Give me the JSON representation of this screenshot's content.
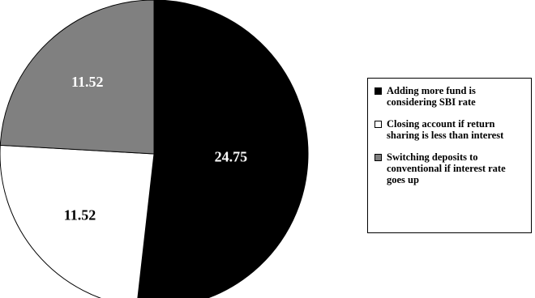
{
  "chart_data": {
    "type": "pie",
    "title": "",
    "start_angle_deg": 0,
    "direction": "clockwise",
    "slices": [
      {
        "label": "Adding more fund is considering SBI rate",
        "value": 24.75,
        "color": "#000000",
        "label_color": "#ffffff"
      },
      {
        "label": "Closing account if return sharing is less than interest",
        "value": 11.52,
        "color": "#ffffff",
        "label_color": "#000000"
      },
      {
        "label": "Switching deposits to conventional if interest rate goes up",
        "value": 11.52,
        "color": "#808080",
        "label_color": "#ffffff"
      }
    ],
    "legend_position": "right"
  }
}
